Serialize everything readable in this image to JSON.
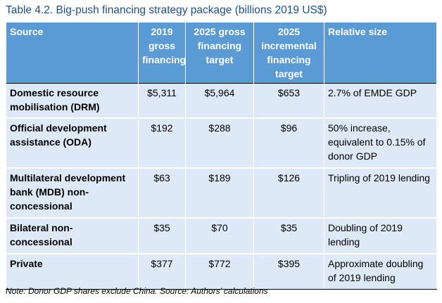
{
  "title": "Table 4.2. Big-push financing strategy package (billions 2019 US$)",
  "table": {
    "headers": [
      "Source",
      "2019 gross financing",
      "2025 gross financing target",
      "2025 incremental financing target",
      "Relative size"
    ],
    "rows": [
      {
        "source": "Domestic resource mobilisation (DRM)",
        "gross_2019": "$5,311",
        "gross_target_2025": "$5,964",
        "incremental_target_2025": "$653",
        "relative_size": "2.7% of EMDE GDP"
      },
      {
        "source": "Official development assistance (ODA)",
        "gross_2019": "$192",
        "gross_target_2025": "$288",
        "incremental_target_2025": "$96",
        "relative_size": "50% increase, equivalent to 0.15% of donor GDP"
      },
      {
        "source": "Multilateral development bank (MDB) non-concessional",
        "gross_2019": "$63",
        "gross_target_2025": "$189",
        "incremental_target_2025": "$126",
        "relative_size": "Tripling of 2019 lending"
      },
      {
        "source": "Bilateral non-concessional",
        "gross_2019": "$35",
        "gross_target_2025": "$70",
        "incremental_target_2025": "$35",
        "relative_size": "Doubling of 2019 lending"
      },
      {
        "source": "Private",
        "gross_2019": "$377",
        "gross_target_2025": "$772",
        "incremental_target_2025": "$395",
        "relative_size": "Approximate doubling of 2019 lending"
      }
    ]
  },
  "note": "Note: Donor GDP shares exclude China. Source: Authors’ calculations",
  "colors": {
    "header_bg": "#5b9bd5",
    "row_bg": "#dde9f7",
    "title": "#1f4e8c"
  }
}
